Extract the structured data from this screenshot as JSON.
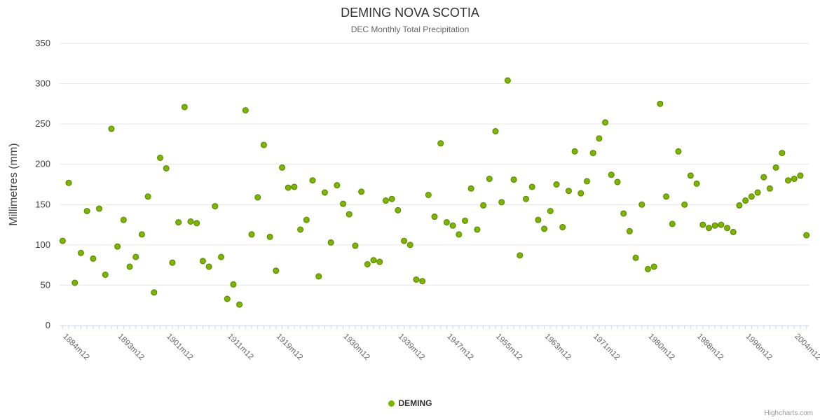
{
  "title": "DEMING NOVA SCOTIA",
  "subtitle": "DEC Monthly Total Precipitation",
  "legend": {
    "series_label": "DEMING"
  },
  "credits": "Highcharts.com",
  "chart_data": {
    "type": "scatter",
    "title": "DEMING NOVA SCOTIA",
    "subtitle": "DEC Monthly Total Precipitation",
    "series_name": "DEMING",
    "xlabel": "",
    "ylabel": "Millimetres (mm)",
    "ylim": [
      0,
      350
    ],
    "y_ticks": [
      0,
      50,
      100,
      150,
      200,
      250,
      300,
      350
    ],
    "grid_on": true,
    "legend_position": "bottom-center",
    "marker_color": "#7cb500",
    "marker_line_color": "#578000",
    "grid_color": "#e6e6e6",
    "axis_color": "#ccd6eb",
    "x_tick_labels": [
      "1884m12",
      "1893m12",
      "1901m12",
      "1911m12",
      "1919m12",
      "1930m12",
      "1939m12",
      "1947m12",
      "1955m12",
      "1963m12",
      "1971m12",
      "1980m12",
      "1988m12",
      "1996m12",
      "2004m12"
    ],
    "categories": [
      "1884m12",
      "1885m12",
      "1886m12",
      "1887m12",
      "1888m12",
      "1889m12",
      "1890m12",
      "1891m12",
      "1892m12",
      "1893m12",
      "1894m12",
      "1895m12",
      "1896m12",
      "1897m12",
      "1898m12",
      "1899m12",
      "1900m12",
      "1901m12",
      "1902m12",
      "1903m12",
      "1904m12",
      "1905m12",
      "1906m12",
      "1907m12",
      "1908m12",
      "1909m12",
      "1910m12",
      "1911m12",
      "1912m12",
      "1913m12",
      "1914m12",
      "1915m12",
      "1916m12",
      "1917m12",
      "1918m12",
      "1919m12",
      "1920m12",
      "1921m12",
      "1922m12",
      "1923m12",
      "1924m12",
      "1925m12",
      "1926m12",
      "1927m12",
      "1928m12",
      "1929m12",
      "1930m12",
      "1931m12",
      "1932m12",
      "1933m12",
      "1934m12",
      "1935m12",
      "1936m12",
      "1937m12",
      "1938m12",
      "1939m12",
      "1940m12",
      "1941m12",
      "1942m12",
      "1943m12",
      "1944m12",
      "1945m12",
      "1946m12",
      "1947m12",
      "1948m12",
      "1949m12",
      "1950m12",
      "1951m12",
      "1952m12",
      "1953m12",
      "1954m12",
      "1955m12",
      "1956m12",
      "1957m12",
      "1958m12",
      "1959m12",
      "1960m12",
      "1961m12",
      "1962m12",
      "1963m12",
      "1964m12",
      "1965m12",
      "1966m12",
      "1967m12",
      "1968m12",
      "1969m12",
      "1970m12",
      "1971m12",
      "1972m12",
      "1973m12",
      "1974m12",
      "1975m12",
      "1976m12",
      "1977m12",
      "1978m12",
      "1979m12",
      "1980m12",
      "1981m12",
      "1982m12",
      "1983m12",
      "1984m12",
      "1985m12",
      "1986m12",
      "1987m12",
      "1988m12",
      "1989m12",
      "1990m12",
      "1991m12",
      "1992m12",
      "1993m12",
      "1994m12",
      "1995m12",
      "1996m12",
      "1997m12",
      "1998m12",
      "1999m12",
      "2000m12",
      "2001m12",
      "2002m12",
      "2003m12",
      "2004m12",
      "2005m12",
      "2006m12"
    ],
    "values": [
      105,
      177,
      53,
      90,
      142,
      83,
      145,
      63,
      244,
      98,
      131,
      73,
      85,
      113,
      160,
      41,
      208,
      195,
      78,
      128,
      271,
      129,
      127,
      80,
      73,
      148,
      85,
      33,
      51,
      26,
      267,
      113,
      159,
      224,
      110,
      68,
      196,
      171,
      172,
      119,
      131,
      180,
      61,
      165,
      103,
      174,
      151,
      138,
      99,
      166,
      76,
      81,
      79,
      155,
      157,
      143,
      105,
      100,
      57,
      55,
      162,
      135,
      226,
      128,
      124,
      113,
      130,
      170,
      119,
      149,
      182,
      241,
      153,
      304,
      181,
      87,
      157,
      172,
      131,
      120,
      142,
      175,
      122,
      167,
      216,
      164,
      179,
      214,
      232,
      252,
      187,
      178,
      139,
      117,
      84,
      150,
      70,
      73,
      275,
      160,
      126,
      216,
      150,
      186,
      176,
      125,
      121,
      124,
      125,
      121,
      116,
      149,
      155,
      160,
      165,
      184,
      170,
      196,
      214,
      180,
      182,
      186,
      112
    ]
  }
}
